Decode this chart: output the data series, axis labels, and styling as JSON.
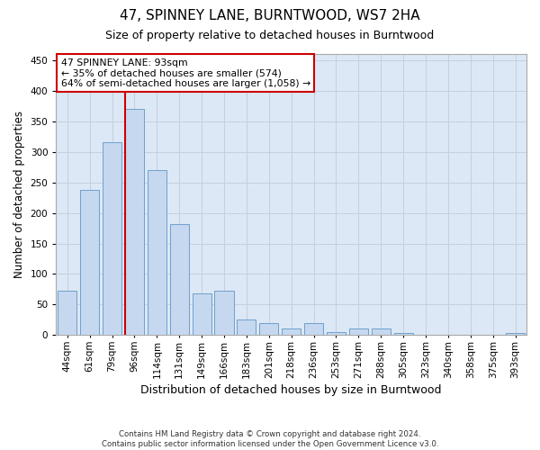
{
  "title": "47, SPINNEY LANE, BURNTWOOD, WS7 2HA",
  "subtitle": "Size of property relative to detached houses in Burntwood",
  "xlabel": "Distribution of detached houses by size in Burntwood",
  "ylabel": "Number of detached properties",
  "categories": [
    "44sqm",
    "61sqm",
    "79sqm",
    "96sqm",
    "114sqm",
    "131sqm",
    "149sqm",
    "166sqm",
    "183sqm",
    "201sqm",
    "218sqm",
    "236sqm",
    "253sqm",
    "271sqm",
    "288sqm",
    "305sqm",
    "323sqm",
    "340sqm",
    "358sqm",
    "375sqm",
    "393sqm"
  ],
  "values": [
    72,
    237,
    315,
    370,
    270,
    182,
    68,
    72,
    25,
    20,
    11,
    20,
    5,
    11,
    11,
    3,
    1,
    1,
    1,
    1,
    3
  ],
  "bar_color": "#c5d8ef",
  "bar_edge_color": "#6fa0cc",
  "vline_x_index": 3,
  "vline_color": "#cc0000",
  "annotation_text": "47 SPINNEY LANE: 93sqm\n← 35% of detached houses are smaller (574)\n64% of semi-detached houses are larger (1,058) →",
  "annotation_box_facecolor": "#ffffff",
  "annotation_box_edgecolor": "#cc0000",
  "footnote_line1": "Contains HM Land Registry data © Crown copyright and database right 2024.",
  "footnote_line2": "Contains public sector information licensed under the Open Government Licence v3.0.",
  "ylim": [
    0,
    460
  ],
  "yticks": [
    0,
    50,
    100,
    150,
    200,
    250,
    300,
    350,
    400,
    450
  ],
  "bg_color": "#ffffff",
  "plot_bg_color": "#dce8f5",
  "grid_color": "#c5cfe0",
  "title_fontsize": 11,
  "subtitle_fontsize": 9,
  "ylabel_fontsize": 8.5,
  "xlabel_fontsize": 9,
  "tick_fontsize": 7.5
}
